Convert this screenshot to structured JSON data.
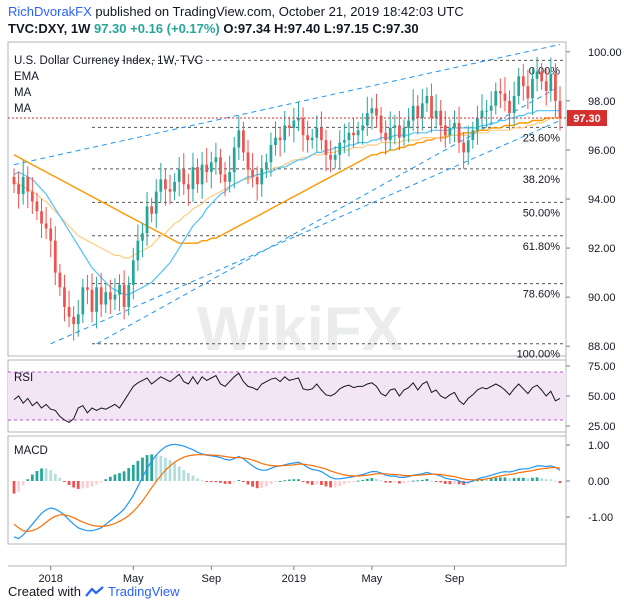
{
  "header": {
    "author": "RichDvorakFX",
    "published": "published on TradingView.com, October 21, 2019 18:42:03 UTC",
    "ohlc_line": {
      "symbol": "TVC:DXY, 1W",
      "last": "97.30",
      "change": "+0.16 (+0.17%)",
      "open": "O:97.34",
      "high": "H:97.40",
      "low": "L:97.15",
      "close": "C:97.30"
    }
  },
  "footer": {
    "created_with": "Created with",
    "brand": "TradingView"
  },
  "watermark": "WikiFX",
  "colors": {
    "up": "#26a69a",
    "down": "#ef5350",
    "ema": "#ff9800",
    "ma_fast": "#4fc3f7",
    "ma_slow": "#2196f3",
    "channel": "#2196f3",
    "price_line": "#d32f2f",
    "rsi_band": "#f3e5f5"
  },
  "chart_data": [
    {
      "type": "candlestick",
      "title": "U.S. Dollar Currency Index, 1W, TVC",
      "legend": [
        "EMA",
        "MA",
        "MA"
      ],
      "x_ticks": [
        "2018",
        "May",
        "Sep",
        "2019",
        "May",
        "Sep"
      ],
      "y_ticks": [
        "100.00",
        "98.00",
        "96.00",
        "94.00",
        "92.00",
        "90.00",
        "88.00"
      ],
      "ylim": [
        87.6,
        100.4
      ],
      "last_price": "97.30",
      "fib_levels": [
        {
          "label": "0.00%",
          "value": 99.65
        },
        {
          "label": "23.60%",
          "value": 96.92
        },
        {
          "label": "38.20%",
          "value": 95.23
        },
        {
          "label": "50.00%",
          "value": 93.86
        },
        {
          "label": "61.80%",
          "value": 92.5
        },
        {
          "label": "78.60%",
          "value": 90.55
        },
        {
          "label": "100.00%",
          "value": 88.1
        }
      ],
      "close": [
        94.6,
        94.2,
        94.9,
        94.3,
        93.9,
        93.5,
        93.0,
        92.8,
        92.3,
        91.0,
        90.4,
        89.6,
        89.2,
        88.9,
        89.3,
        90.4,
        90.3,
        89.4,
        90.4,
        89.7,
        90.2,
        89.9,
        90.1,
        90.5,
        89.6,
        90.5,
        91.5,
        92.3,
        92.6,
        93.7,
        93.4,
        94.3,
        94.8,
        94.4,
        94.3,
        94.7,
        95.2,
        94.6,
        94.4,
        95.3,
        94.6,
        95.4,
        95.1,
        95.5,
        95.7,
        95.0,
        94.7,
        95.1,
        96.1,
        96.8,
        95.9,
        95.2,
        94.9,
        94.6,
        95.2,
        95.5,
        96.2,
        96.5,
        96.4,
        97.0,
        96.9,
        97.2,
        97.3,
        96.6,
        96.4,
        96.5,
        96.9,
        96.4,
        95.8,
        95.6,
        95.8,
        96.3,
        96.4,
        96.7,
        96.6,
        96.8,
        97.0,
        97.5,
        97.7,
        97.4,
        96.7,
        96.4,
        96.9,
        97.0,
        96.5,
        96.9,
        97.2,
        97.8,
        97.3,
        97.9,
        98.2,
        97.3,
        97.6,
        97.0,
        96.6,
        96.9,
        97.1,
        96.3,
        95.9,
        96.4,
        96.8,
        97.3,
        97.6,
        97.6,
        97.8,
        98.4,
        98.3,
        98.0,
        97.5,
        98.2,
        99.0,
        98.6,
        98.1,
        98.9,
        99.2,
        98.8,
        98.4,
        99.1,
        98.0,
        97.3
      ],
      "ema": [
        94.7,
        94.6,
        94.5,
        94.4,
        94.3,
        94.2,
        94.0,
        93.9,
        93.7,
        93.5,
        93.3,
        93.1,
        92.9,
        92.7,
        92.5,
        92.4,
        92.3,
        92.2,
        92.1,
        92.0,
        91.9,
        91.8,
        91.7,
        91.7,
        91.6,
        91.6,
        91.7,
        91.8,
        91.9,
        92.0,
        92.1,
        92.3,
        92.5,
        92.6,
        92.8,
        93.0,
        93.1,
        93.3,
        93.4,
        93.6,
        93.7,
        93.8,
        94.0,
        94.1,
        94.2,
        94.3,
        94.4,
        94.5,
        94.6,
        94.7,
        94.8,
        94.8,
        94.9,
        95.0,
        95.0,
        95.1,
        95.2,
        95.3,
        95.3,
        95.4,
        95.5,
        95.6,
        95.6,
        95.7,
        95.7,
        95.8,
        95.8,
        95.8,
        95.9,
        95.9,
        95.9,
        96.0,
        96.0,
        96.0,
        96.1,
        96.1,
        96.1,
        96.2,
        96.2,
        96.2,
        96.3,
        96.3,
        96.3,
        96.3,
        96.3,
        96.4,
        96.4,
        96.4,
        96.4,
        96.5,
        96.5,
        96.5,
        96.5,
        96.5,
        96.6,
        96.6,
        96.6,
        96.6,
        96.6,
        96.6,
        96.7,
        96.7,
        96.7,
        96.7,
        96.8,
        96.8,
        96.8,
        96.8,
        96.8,
        96.9,
        96.9,
        96.9,
        97.0,
        97.0,
        97.1,
        97.1,
        97.2,
        97.3,
        97.3,
        97.3
      ],
      "ma_fast": [
        95.0,
        95.1,
        95.0,
        94.9,
        94.8,
        94.6,
        94.4,
        94.2,
        93.9,
        93.6,
        93.3,
        93.0,
        92.7,
        92.4,
        92.1,
        91.8,
        91.5,
        91.2,
        91.0,
        90.8,
        90.6,
        90.4,
        90.3,
        90.2,
        90.1,
        90.1,
        90.2,
        90.3,
        90.4,
        90.5,
        90.6,
        90.8,
        91.0,
        91.2,
        91.4,
        91.7,
        92.0,
        92.3,
        92.6,
        92.9,
        93.1,
        93.3,
        93.6,
        93.8,
        94.0,
        94.2,
        94.3,
        94.5,
        94.6,
        94.7,
        94.8,
        94.9,
        94.9,
        95.0,
        95.0,
        95.1,
        95.1,
        95.2,
        95.3,
        95.3,
        95.4,
        95.5,
        95.6,
        95.6,
        95.7,
        95.8,
        95.9,
        95.9,
        96.0,
        96.0,
        96.1,
        96.1,
        96.1,
        96.2,
        96.2,
        96.3,
        96.3,
        96.3,
        96.4,
        96.4,
        96.5,
        96.5,
        96.5,
        96.6,
        96.6,
        96.6,
        96.6,
        96.7,
        96.7,
        96.7,
        96.7,
        96.8,
        96.8,
        96.8,
        96.8,
        96.8,
        96.9,
        96.9,
        96.9,
        96.9,
        96.9,
        96.9,
        97.0,
        97.0,
        97.1,
        97.1,
        97.2,
        97.2,
        97.3,
        97.3,
        97.4,
        97.4,
        97.5,
        97.5,
        97.6,
        97.6,
        97.6,
        97.6,
        97.6,
        97.6
      ],
      "ma_slow": [
        95.8,
        95.7,
        95.6,
        95.5,
        95.4,
        95.3,
        95.2,
        95.1,
        95.0,
        94.9,
        94.8,
        94.7,
        94.6,
        94.5,
        94.4,
        94.3,
        94.2,
        94.1,
        94.0,
        93.9,
        93.8,
        93.7,
        93.6,
        93.5,
        93.4,
        93.3,
        93.2,
        93.1,
        93.0,
        92.9,
        92.8,
        92.7,
        92.6,
        92.5,
        92.4,
        92.3,
        92.2,
        92.2,
        92.2,
        92.2,
        92.2,
        92.3,
        92.3,
        92.4,
        92.4,
        92.5,
        92.6,
        92.7,
        92.8,
        92.9,
        93.0,
        93.1,
        93.2,
        93.3,
        93.4,
        93.5,
        93.6,
        93.7,
        93.8,
        93.9,
        94.0,
        94.1,
        94.2,
        94.3,
        94.4,
        94.5,
        94.6,
        94.7,
        94.8,
        94.9,
        95.0,
        95.1,
        95.2,
        95.3,
        95.4,
        95.5,
        95.6,
        95.7,
        95.8,
        95.8,
        95.9,
        95.9,
        96.0,
        96.0,
        96.1,
        96.1,
        96.2,
        96.2,
        96.3,
        96.3,
        96.4,
        96.4,
        96.5,
        96.5,
        96.5,
        96.6,
        96.6,
        96.6,
        96.7,
        96.7,
        96.7,
        96.8,
        96.8,
        96.8,
        96.9,
        96.9,
        96.9,
        97.0,
        97.0,
        97.0,
        97.1,
        97.1,
        97.1,
        97.2,
        97.2,
        97.2,
        97.3,
        97.3,
        97.3,
        97.3
      ]
    },
    {
      "type": "line",
      "title": "RSI",
      "y_ticks": [
        "75.00",
        "50.00",
        "25.00"
      ],
      "ylim": [
        20,
        80
      ],
      "band": [
        30,
        70
      ],
      "values": [
        47,
        50,
        44,
        48,
        42,
        45,
        40,
        43,
        39,
        38,
        33,
        30,
        28,
        31,
        40,
        42,
        36,
        40,
        38,
        40,
        39,
        41,
        43,
        40,
        46,
        52,
        58,
        61,
        63,
        65,
        60,
        63,
        66,
        64,
        62,
        65,
        68,
        62,
        60,
        66,
        60,
        66,
        63,
        65,
        67,
        60,
        58,
        62,
        66,
        69,
        62,
        58,
        57,
        55,
        60,
        62,
        64,
        65,
        62,
        66,
        63,
        64,
        65,
        56,
        55,
        56,
        60,
        55,
        51,
        50,
        52,
        56,
        58,
        59,
        57,
        58,
        58,
        60,
        61,
        58,
        52,
        50,
        55,
        56,
        50,
        55,
        57,
        61,
        55,
        60,
        62,
        53,
        55,
        50,
        48,
        51,
        53,
        46,
        43,
        48,
        51,
        55,
        57,
        56,
        58,
        60,
        58,
        55,
        51,
        56,
        60,
        56,
        52,
        57,
        59,
        55,
        50,
        54,
        46,
        48
      ]
    },
    {
      "type": "bar",
      "title": "MACD",
      "y_ticks": [
        "1.00",
        "0.00",
        "-1.00"
      ],
      "ylim": [
        -1.75,
        1.25
      ],
      "macd": [
        -1.55,
        -1.6,
        -1.5,
        -1.35,
        -1.2,
        -1.05,
        -0.9,
        -0.8,
        -0.75,
        -0.78,
        -0.85,
        -0.95,
        -1.08,
        -1.2,
        -1.3,
        -1.35,
        -1.38,
        -1.38,
        -1.35,
        -1.3,
        -1.2,
        -1.1,
        -1.0,
        -0.9,
        -0.78,
        -0.6,
        -0.4,
        -0.15,
        0.1,
        0.35,
        0.55,
        0.72,
        0.85,
        0.95,
        1.0,
        1.02,
        1.0,
        0.97,
        0.92,
        0.87,
        0.8,
        0.75,
        0.72,
        0.7,
        0.68,
        0.65,
        0.6,
        0.58,
        0.62,
        0.68,
        0.62,
        0.52,
        0.42,
        0.34,
        0.3,
        0.3,
        0.35,
        0.4,
        0.42,
        0.45,
        0.48,
        0.5,
        0.52,
        0.46,
        0.38,
        0.32,
        0.3,
        0.26,
        0.18,
        0.1,
        0.06,
        0.06,
        0.08,
        0.1,
        0.12,
        0.15,
        0.18,
        0.22,
        0.26,
        0.26,
        0.22,
        0.16,
        0.14,
        0.14,
        0.1,
        0.1,
        0.12,
        0.16,
        0.18,
        0.2,
        0.24,
        0.2,
        0.18,
        0.14,
        0.08,
        0.05,
        0.04,
        0.0,
        -0.05,
        -0.04,
        0.0,
        0.05,
        0.1,
        0.12,
        0.16,
        0.2,
        0.24,
        0.26,
        0.25,
        0.28,
        0.32,
        0.34,
        0.34,
        0.38,
        0.42,
        0.42,
        0.4,
        0.42,
        0.38,
        0.3
      ],
      "signal": [
        -1.2,
        -1.3,
        -1.38,
        -1.4,
        -1.38,
        -1.33,
        -1.25,
        -1.15,
        -1.05,
        -0.98,
        -0.94,
        -0.94,
        -0.97,
        -1.02,
        -1.08,
        -1.14,
        -1.19,
        -1.23,
        -1.25,
        -1.26,
        -1.25,
        -1.22,
        -1.18,
        -1.12,
        -1.05,
        -0.96,
        -0.85,
        -0.71,
        -0.55,
        -0.37,
        -0.19,
        -0.01,
        0.15,
        0.3,
        0.42,
        0.52,
        0.6,
        0.66,
        0.7,
        0.72,
        0.73,
        0.73,
        0.73,
        0.72,
        0.71,
        0.7,
        0.68,
        0.66,
        0.65,
        0.65,
        0.64,
        0.62,
        0.58,
        0.54,
        0.49,
        0.45,
        0.43,
        0.42,
        0.42,
        0.43,
        0.44,
        0.45,
        0.47,
        0.47,
        0.45,
        0.43,
        0.4,
        0.37,
        0.33,
        0.28,
        0.24,
        0.2,
        0.17,
        0.15,
        0.14,
        0.14,
        0.15,
        0.16,
        0.18,
        0.2,
        0.2,
        0.2,
        0.19,
        0.18,
        0.17,
        0.15,
        0.15,
        0.15,
        0.16,
        0.17,
        0.18,
        0.19,
        0.19,
        0.18,
        0.16,
        0.14,
        0.12,
        0.09,
        0.06,
        0.04,
        0.03,
        0.03,
        0.04,
        0.06,
        0.08,
        0.11,
        0.14,
        0.16,
        0.18,
        0.2,
        0.23,
        0.25,
        0.27,
        0.29,
        0.32,
        0.34,
        0.35,
        0.37,
        0.37,
        0.36
      ]
    }
  ]
}
